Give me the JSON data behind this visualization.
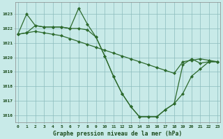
{
  "bg_color": "#c8eae8",
  "grid_color": "#8bbcbc",
  "line_color": "#2d6a2d",
  "marker_color": "#2d6a2d",
  "xlabel": "Graphe pression niveau de la mer (hPa)",
  "xlabel_color": "#1a4a1a",
  "ylabel_color": "#1a4a1a",
  "ylim": [
    1015.5,
    1023.8
  ],
  "xlim": [
    -0.3,
    23.3
  ],
  "yticks": [
    1016,
    1017,
    1018,
    1019,
    1020,
    1021,
    1022,
    1023
  ],
  "xticks": [
    0,
    1,
    2,
    3,
    4,
    5,
    6,
    7,
    8,
    9,
    10,
    11,
    12,
    13,
    14,
    15,
    16,
    17,
    18,
    19,
    20,
    21,
    22,
    23
  ],
  "line1_x": [
    0,
    1,
    2,
    3,
    4,
    5,
    6,
    7,
    8,
    9,
    10,
    11,
    12,
    13,
    14,
    15,
    16,
    17,
    18,
    19,
    20,
    21,
    22,
    23
  ],
  "line1_y": [
    1021.6,
    1021.7,
    1021.8,
    1021.7,
    1021.6,
    1021.5,
    1021.3,
    1021.1,
    1020.9,
    1020.7,
    1020.5,
    1020.3,
    1020.1,
    1019.9,
    1019.7,
    1019.5,
    1019.3,
    1019.1,
    1018.9,
    1019.7,
    1019.8,
    1019.9,
    1019.8,
    1019.7
  ],
  "line2_x": [
    0,
    1,
    2,
    3,
    4,
    5,
    6,
    7,
    8,
    9,
    10,
    11,
    12,
    13,
    14,
    15,
    16,
    17,
    18,
    19,
    20,
    21,
    22,
    23
  ],
  "line2_y": [
    1021.6,
    1023.0,
    1022.2,
    1022.1,
    1022.1,
    1022.1,
    1022.0,
    1023.4,
    1022.3,
    1021.4,
    1020.1,
    1018.7,
    1017.5,
    1016.6,
    1015.9,
    1015.9,
    1015.9,
    1016.4,
    1016.8,
    1017.5,
    1018.7,
    1019.2,
    1019.7,
    1019.7
  ],
  "line3_x": [
    0,
    1,
    2,
    3,
    4,
    5,
    6,
    7,
    8,
    9,
    10,
    11,
    12,
    13,
    14,
    15,
    16,
    17,
    18,
    19,
    20,
    21,
    22,
    23
  ],
  "line3_y": [
    1021.6,
    1021.7,
    1022.2,
    1022.1,
    1022.1,
    1022.1,
    1022.0,
    1022.0,
    1021.9,
    1021.4,
    1020.1,
    1018.7,
    1017.5,
    1016.6,
    1015.9,
    1015.9,
    1015.9,
    1016.4,
    1016.8,
    1019.5,
    1019.9,
    1019.6,
    1019.7,
    1019.7
  ]
}
